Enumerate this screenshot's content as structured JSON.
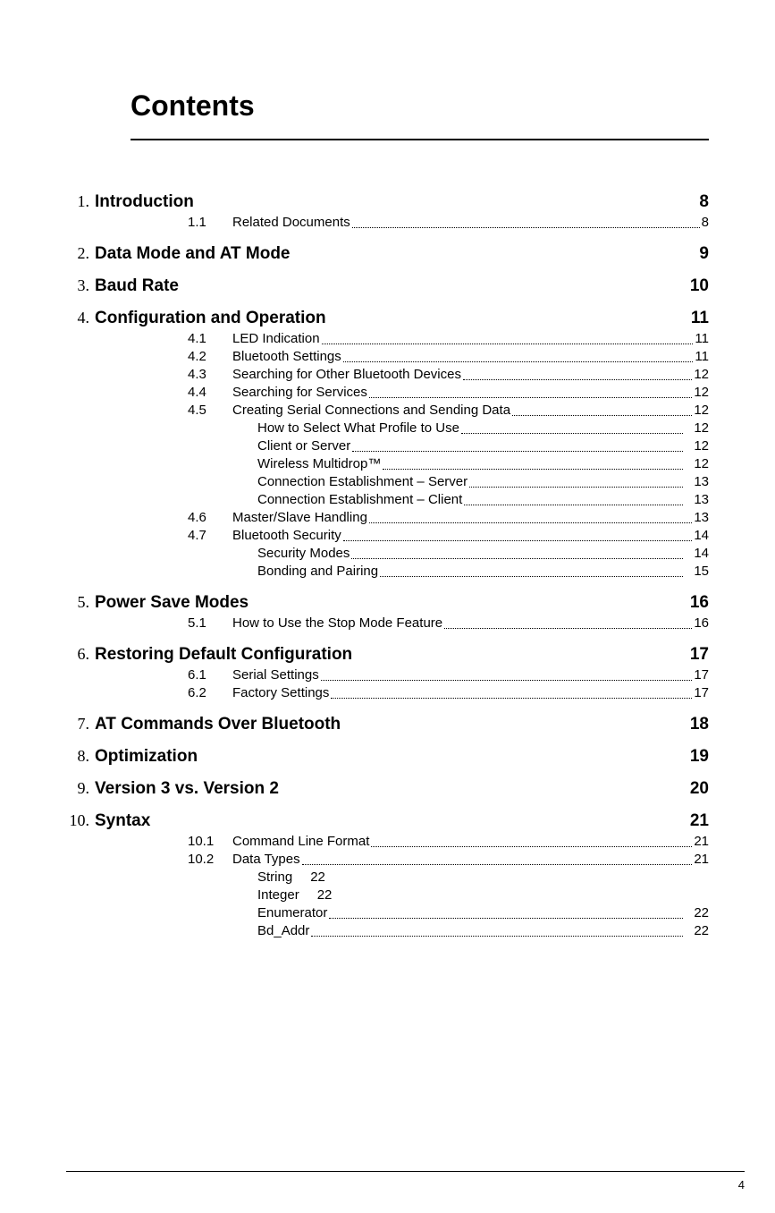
{
  "title": "Contents",
  "page_number": "4",
  "toc": [
    {
      "num": "1.",
      "title": "Introduction",
      "page": "8",
      "subs": [
        {
          "num": "1.1",
          "text": "Related Documents",
          "page": "8",
          "leader": true
        }
      ]
    },
    {
      "num": "2.",
      "title": "Data Mode and AT Mode",
      "page": "9",
      "subs": []
    },
    {
      "num": "3.",
      "title": "Baud Rate",
      "page": "10",
      "subs": []
    },
    {
      "num": "4.",
      "title": "Configuration and Operation",
      "page": "11",
      "subs": [
        {
          "num": "4.1",
          "text": "LED Indication",
          "page": "11",
          "leader": true
        },
        {
          "num": "4.2",
          "text": "Bluetooth Settings",
          "page": "11",
          "leader": true
        },
        {
          "num": "4.3",
          "text": "Searching for Other Bluetooth Devices",
          "page": "12",
          "leader": true
        },
        {
          "num": "4.4",
          "text": "Searching for Services",
          "page": "12",
          "leader": true
        },
        {
          "num": "4.5",
          "text": "Creating Serial Connections and Sending Data",
          "page": "12",
          "leader": true,
          "subsubs": [
            {
              "text": "How to Select What Profile to Use",
              "page": "12",
              "leader": true
            },
            {
              "text": "Client or Server",
              "page": "12",
              "leader": true
            },
            {
              "text": "Wireless Multidrop™",
              "page": "12",
              "leader": true
            },
            {
              "text": "Connection Establishment – Server",
              "page": "13",
              "leader": true
            },
            {
              "text": "Connection Establishment – Client",
              "page": "13",
              "leader": true
            }
          ]
        },
        {
          "num": "4.6",
          "text": "Master/Slave Handling",
          "page": "13",
          "leader": true
        },
        {
          "num": "4.7",
          "text": "Bluetooth Security",
          "page": "14",
          "leader": true,
          "subsubs": [
            {
              "text": "Security Modes",
              "page": "14",
              "leader": true
            },
            {
              "text": "Bonding and Pairing",
              "page": "15",
              "leader": true
            }
          ]
        }
      ]
    },
    {
      "num": "5.",
      "title": "Power Save Modes",
      "page": "16",
      "subs": [
        {
          "num": "5.1",
          "text": "How to Use the Stop Mode Feature",
          "page": "16",
          "leader": true
        }
      ]
    },
    {
      "num": "6.",
      "title": "Restoring Default Configuration",
      "page": "17",
      "subs": [
        {
          "num": "6.1",
          "text": "Serial Settings",
          "page": "17",
          "leader": true
        },
        {
          "num": "6.2",
          "text": "Factory Settings",
          "page": "17",
          "leader": true
        }
      ]
    },
    {
      "num": "7.",
      "title": "AT Commands Over Bluetooth",
      "page": "18",
      "subs": []
    },
    {
      "num": "8.",
      "title": "Optimization",
      "page": "19",
      "subs": []
    },
    {
      "num": "9.",
      "title": "Version 3 vs. Version 2",
      "page": "20",
      "subs": []
    },
    {
      "num": "10.",
      "title": "Syntax",
      "page": "21",
      "subs": [
        {
          "num": "10.1",
          "text": "Command Line Format",
          "page": "21",
          "leader": true
        },
        {
          "num": "10.2",
          "text": "Data Types",
          "page": "21",
          "leader": true,
          "subsubs": [
            {
              "text": "String",
              "page": "22",
              "leader": false
            },
            {
              "text": "Integer",
              "page": "22",
              "leader": false
            },
            {
              "text": "Enumerator",
              "page": "22",
              "leader": true
            },
            {
              "text": "Bd_Addr",
              "page": "22",
              "leader": true
            }
          ]
        }
      ]
    }
  ]
}
